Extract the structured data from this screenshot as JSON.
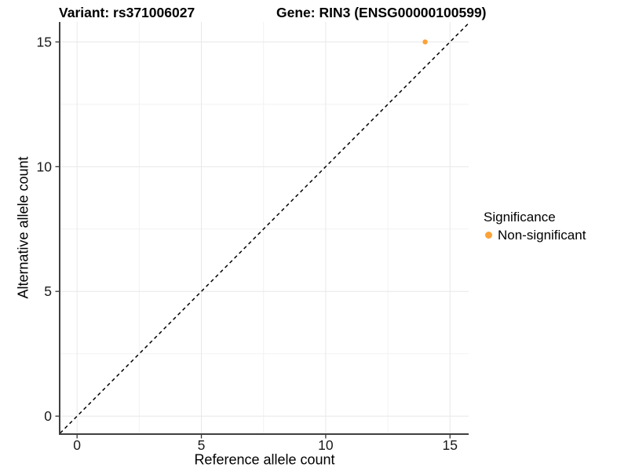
{
  "figure": {
    "title_left": "Variant: rs371006027",
    "title_right": "Gene: RIN3 (ENSG00000100599)"
  },
  "legend": {
    "title": "Significance",
    "items": [
      {
        "label": "Non-significant",
        "color": "#FBA239",
        "marker": "circle"
      }
    ]
  },
  "chart_data": {
    "type": "scatter",
    "title": "Variant: rs371006027    Gene: RIN3 (ENSG00000100599)",
    "xlabel": "Reference allele count",
    "ylabel": "Alternative allele count",
    "xlim": [
      -0.7,
      15.75
    ],
    "ylim": [
      -0.72,
      15.8
    ],
    "xticks": [
      0,
      5,
      10,
      15
    ],
    "yticks": [
      0,
      5,
      10,
      15
    ],
    "x_minor_ticks": [
      2.5,
      7.5,
      12.5
    ],
    "y_minor_ticks": [
      2.5,
      7.5,
      12.5
    ],
    "grid": "major+minor",
    "legend_position": "right",
    "series": [
      {
        "name": "Non-significant",
        "color": "#FBA239",
        "points": [
          {
            "x": 14,
            "y": 15
          }
        ]
      }
    ],
    "reference_line": {
      "kind": "identity",
      "slope": 1,
      "intercept": 0,
      "style": "dashed",
      "color": "#000000"
    }
  },
  "colors": {
    "background": "#FFFFFF",
    "grid_major": "#E8E8E8",
    "grid_minor": "#F2F2F2",
    "axis_line": "#404040",
    "tick": "#333333",
    "tick_label": "#1A1A1A",
    "point": "#FBA239"
  }
}
